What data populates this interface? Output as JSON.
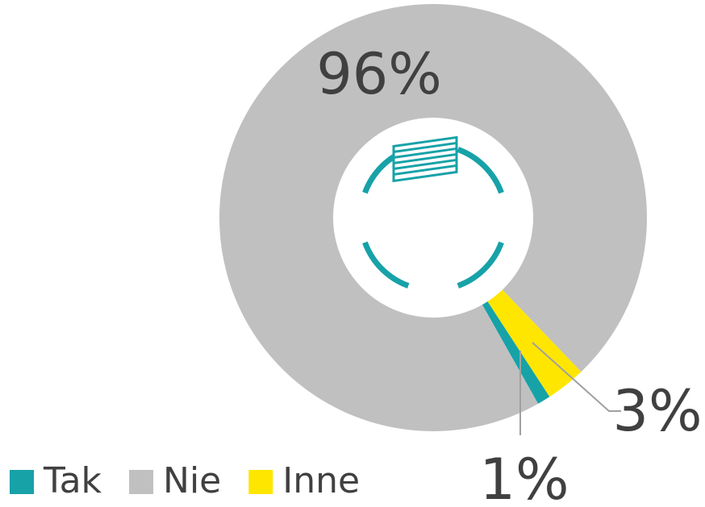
{
  "chart_data": {
    "type": "donut",
    "categories": [
      "Tak",
      "Nie",
      "Inne"
    ],
    "values": [
      1,
      96,
      3
    ],
    "value_labels": [
      "1%",
      "96%",
      "3%"
    ],
    "colors": [
      "#17a2a8",
      "#c0c0c0",
      "#ffe600"
    ],
    "legend": "bottom-left"
  }
}
